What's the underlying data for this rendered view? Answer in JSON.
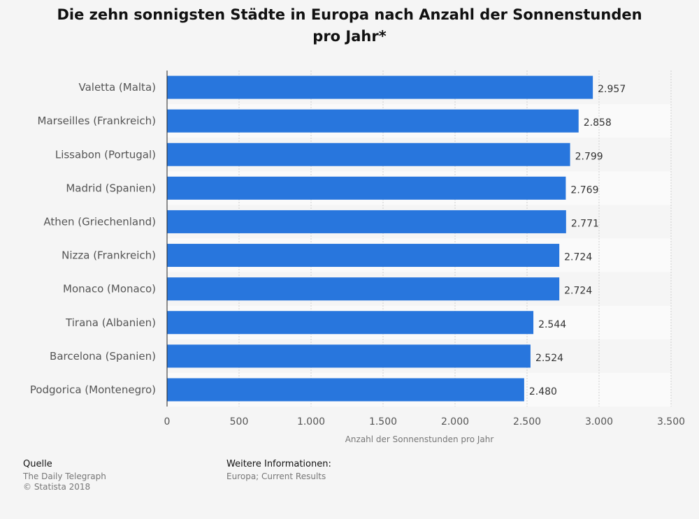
{
  "chart_data": {
    "type": "bar",
    "orientation": "horizontal",
    "title": "Die zehn sonnigsten Städte in Europa nach Anzahl der Sonnenstunden pro Jahr*",
    "xlabel": "Anzahl der Sonnenstunden pro Jahr",
    "ylabel": "",
    "xlim": [
      0,
      3500
    ],
    "x_ticks": [
      "0",
      "500",
      "1.000",
      "1.500",
      "2.000",
      "2.500",
      "3.000",
      "3.500"
    ],
    "categories": [
      "Valetta (Malta)",
      "Marseilles (Frankreich)",
      "Lissabon (Portugal)",
      "Madrid (Spanien)",
      "Athen (Griechenland)",
      "Nizza (Frankreich)",
      "Monaco (Monaco)",
      "Tirana (Albanien)",
      "Barcelona (Spanien)",
      "Podgorica (Montenegro)"
    ],
    "values": [
      2957,
      2858,
      2799,
      2769,
      2771,
      2724,
      2724,
      2544,
      2524,
      2480
    ],
    "value_labels": [
      "2.957",
      "2.858",
      "2.799",
      "2.769",
      "2.771",
      "2.724",
      "2.724",
      "2.544",
      "2.524",
      "2.480"
    ],
    "grid": true,
    "bar_color": "#2876dd"
  },
  "footer": {
    "source_label": "Quelle",
    "source_name": "The Daily Telegraph",
    "copyright": "© Statista 2018",
    "info_label": "Weitere Informationen:",
    "info_text": "Europa; Current Results"
  }
}
